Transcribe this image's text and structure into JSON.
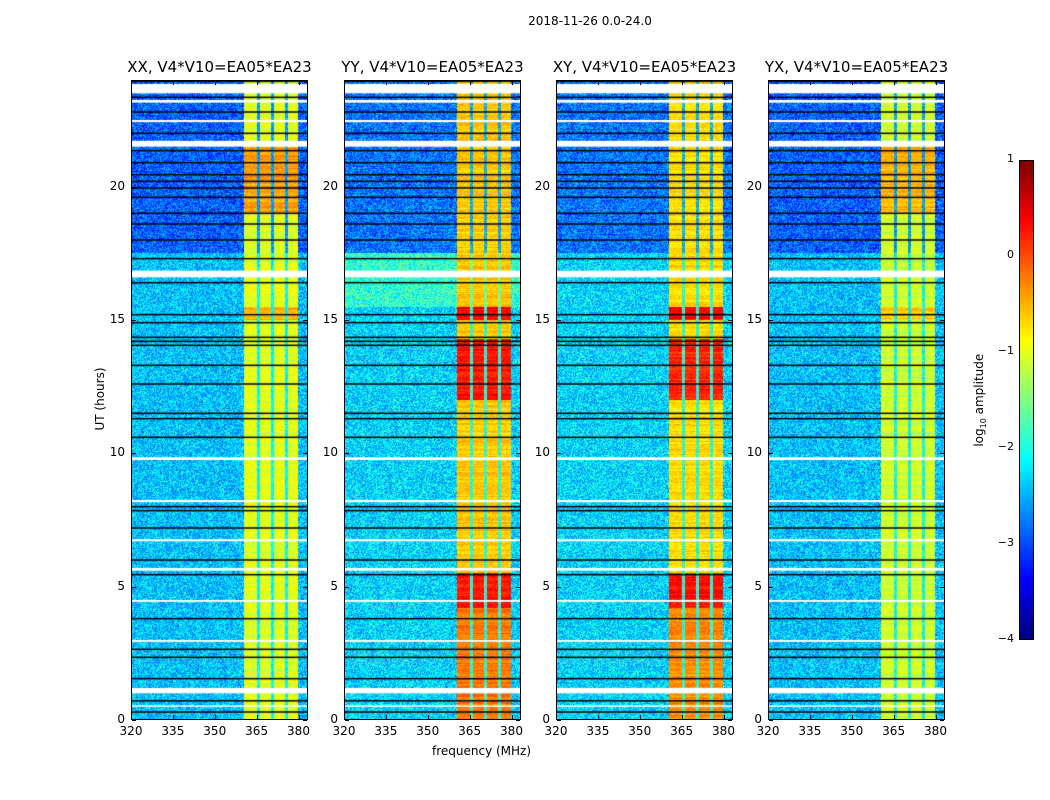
{
  "chart_data": {
    "type": "heatmap",
    "title": "2018-11-26 0.0-24.0",
    "xlabel": "frequency (MHz)",
    "ylabel": "UT (hours)",
    "xlim": [
      320,
      383.4
    ],
    "ylim": [
      0,
      24
    ],
    "xticks": [
      320,
      335,
      350,
      365,
      380
    ],
    "yticks": [
      0,
      5,
      10,
      15,
      20
    ],
    "colorbar": {
      "label_main": "log",
      "label_sub": "10",
      "label_rest": " amplitude",
      "range": [
        -4,
        1
      ],
      "ticks": [
        1,
        0,
        -1,
        -2,
        -3,
        -4
      ],
      "tick_labels": [
        "1",
        "0",
        "−1",
        "−2",
        "−3",
        "−4"
      ],
      "colormap": "jet"
    },
    "band": {
      "start_mhz": 360.3,
      "end_mhz": 379.6,
      "gaps_mhz": [
        365.5,
        370.5,
        375.5
      ]
    },
    "flagged_hours_white": [
      [
        23.5,
        23.85
      ],
      [
        23.15,
        23.25
      ],
      [
        22.42,
        22.5
      ],
      [
        21.5,
        21.72
      ],
      [
        16.6,
        16.85
      ],
      [
        9.75,
        9.85
      ],
      [
        8.17,
        8.25
      ],
      [
        6.7,
        6.78
      ],
      [
        5.6,
        5.7
      ],
      [
        4.43,
        4.5
      ],
      [
        2.93,
        3.0
      ],
      [
        1.0,
        1.2
      ],
      [
        0.5,
        0.55
      ]
    ],
    "black_lines_hours": [
      23.95,
      23.35,
      22.8,
      22.0,
      21.35,
      20.9,
      20.45,
      20.2,
      19.95,
      19.6,
      19.0,
      18.6,
      18.0,
      17.3,
      16.4,
      15.2,
      14.9,
      14.35,
      14.2,
      14.05,
      13.3,
      12.6,
      11.5,
      11.3,
      10.6,
      8.0,
      7.85,
      7.2,
      6.0,
      5.45,
      3.8,
      2.65,
      2.35,
      1.55,
      0.72,
      0.3
    ],
    "panels": [
      {
        "title": "XX, V4*V10=EA05*EA23",
        "background_level": -2.4,
        "band_level": -1.0,
        "enhanced": [
          {
            "hours": [
              19.0,
              21.5
            ],
            "level": -0.4
          },
          {
            "hours": [
              15.0,
              15.5
            ],
            "level": -0.5
          }
        ]
      },
      {
        "title": "YY, V4*V10=EA05*EA23",
        "background_level": -2.3,
        "band_level": -0.6,
        "enhanced": [
          {
            "hours": [
              12.0,
              14.3
            ],
            "level": 0.3
          },
          {
            "hours": [
              4.2,
              5.5
            ],
            "level": 0.3
          },
          {
            "hours": [
              15.0,
              15.5
            ],
            "level": 0.4
          },
          {
            "hours": [
              0,
              4.2
            ],
            "level": -0.2
          }
        ]
      },
      {
        "title": "XY, V4*V10=EA05*EA23",
        "background_level": -2.3,
        "band_level": -0.7,
        "enhanced": [
          {
            "hours": [
              12.0,
              14.3
            ],
            "level": 0.2
          },
          {
            "hours": [
              4.2,
              5.5
            ],
            "level": 0.3
          },
          {
            "hours": [
              15.0,
              15.5
            ],
            "level": 0.4
          },
          {
            "hours": [
              0,
              4.2
            ],
            "level": -0.3
          }
        ]
      },
      {
        "title": "YX, V4*V10=EA05*EA23",
        "background_level": -2.4,
        "band_level": -1.1,
        "enhanced": [
          {
            "hours": [
              19.0,
              21.5
            ],
            "level": -0.5
          },
          {
            "hours": [
              15.0,
              15.5
            ],
            "level": -0.6
          }
        ]
      }
    ]
  }
}
